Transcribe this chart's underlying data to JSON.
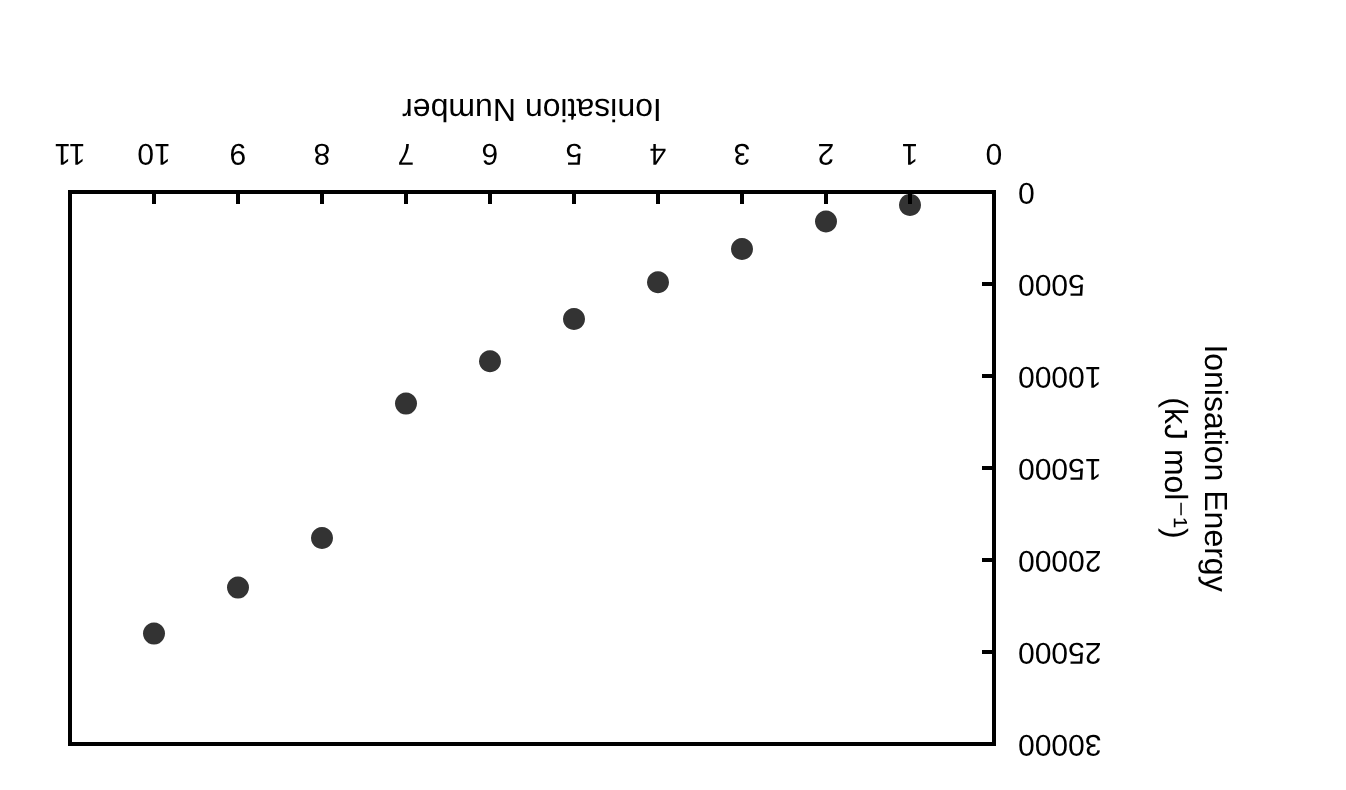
{
  "chart_data": {
    "type": "scatter",
    "xlabel": "Ionisation Number",
    "ylabel": "Ionisation Energy\n(kJ mol⁻¹)",
    "x": [
      1,
      2,
      3,
      4,
      5,
      6,
      7,
      8,
      9,
      10
    ],
    "series": [
      {
        "color": "#000000",
        "values": [
          700,
          1600,
          3100,
          4900,
          6900,
          9200,
          11500,
          18800,
          21500,
          24000
        ]
      }
    ],
    "xlim": [
      11,
      0
    ],
    "xticks": [
      0,
      1,
      2,
      3,
      4,
      5,
      6,
      7,
      8,
      9,
      10,
      11
    ],
    "ylim": [
      30000,
      0
    ],
    "yticks": [
      0,
      5000,
      10000,
      15000,
      20000,
      25000,
      30000
    ],
    "marker": "circle",
    "grid": false
  }
}
